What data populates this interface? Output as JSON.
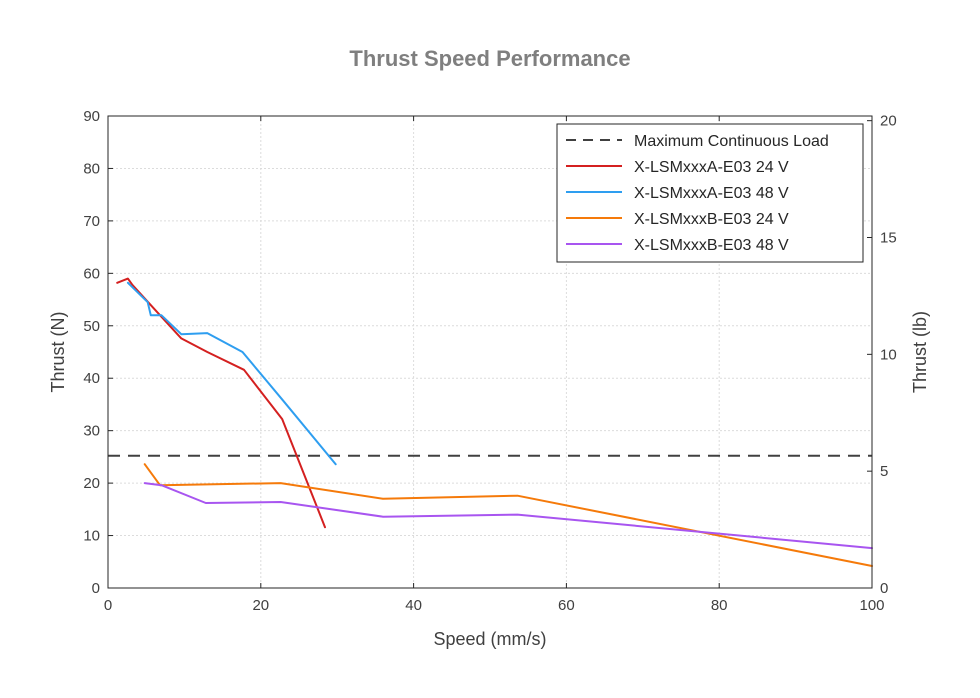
{
  "chart_data": {
    "type": "line",
    "title": "Thrust Speed Performance",
    "xlabel": "Speed (mm/s)",
    "ylabel": "Thrust (N)",
    "y2label": "Thrust (lb)",
    "xlim": [
      0,
      100
    ],
    "ylim": [
      0,
      90
    ],
    "y2lim": [
      0,
      20.2
    ],
    "xticks": [
      0,
      20,
      40,
      60,
      80,
      100
    ],
    "yticks": [
      0,
      10,
      20,
      30,
      40,
      50,
      60,
      70,
      80,
      90
    ],
    "y2ticks": [
      0,
      5,
      10,
      15,
      20
    ],
    "grid": true,
    "legend_position": "top-right",
    "series": [
      {
        "name": "Maximum Continuous Load",
        "color": "#404040",
        "dashed": true,
        "x": [
          0,
          100
        ],
        "y": [
          25.2,
          25.2
        ]
      },
      {
        "name": "X-LSMxxxA-E03 24 V",
        "color": "#d42020",
        "dashed": false,
        "x": [
          1.2,
          2.6,
          3.2,
          6.5,
          9.6,
          13,
          17.8,
          22.8,
          28.4
        ],
        "y": [
          58.2,
          59,
          57.8,
          52.5,
          47.6,
          45,
          41.6,
          32.2,
          11.6
        ]
      },
      {
        "name": "X-LSMxxxA-E03 48 V",
        "color": "#2e9ef0",
        "dashed": false,
        "x": [
          2.6,
          5.2,
          5.6,
          7,
          9.6,
          13,
          17.6,
          23,
          29.8
        ],
        "y": [
          58.2,
          54.5,
          52,
          52,
          48.4,
          48.6,
          45,
          35.6,
          23.6
        ]
      },
      {
        "name": "X-LSMxxxB-E03 24 V",
        "color": "#f57a0a",
        "dashed": false,
        "x": [
          4.8,
          6.8,
          22.6,
          36,
          53.6,
          100
        ],
        "y": [
          23.6,
          19.6,
          20,
          17,
          17.6,
          4.2
        ]
      },
      {
        "name": "X-LSMxxxB-E03 48 V",
        "color": "#a855f0",
        "dashed": false,
        "x": [
          4.8,
          7,
          12.8,
          22.6,
          36,
          53.6,
          100
        ],
        "y": [
          20,
          19.6,
          16.2,
          16.4,
          13.6,
          14,
          7.6
        ]
      }
    ]
  }
}
